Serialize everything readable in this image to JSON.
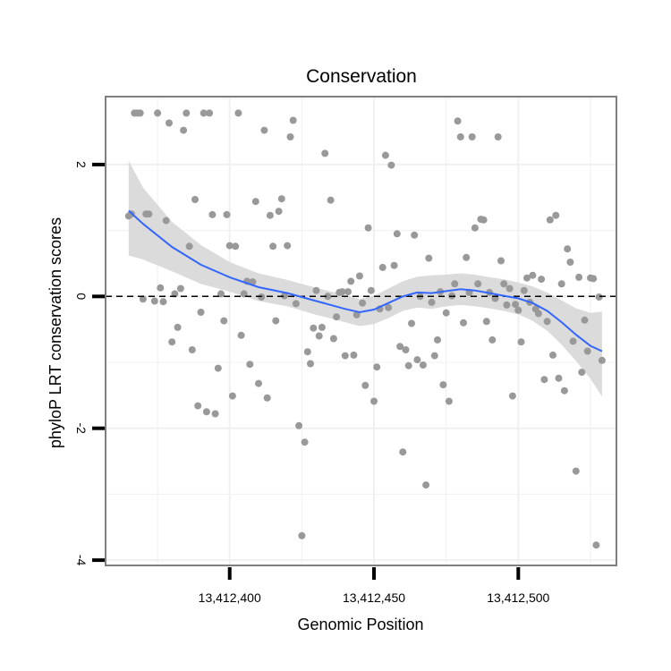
{
  "chart_data": {
    "type": "scatter",
    "title": "Conservation",
    "xlabel": "Genomic Position",
    "ylabel": "phyloP LRT conservation scores",
    "xlim": [
      13412357,
      13412534
    ],
    "ylim": [
      -4.08,
      3.03
    ],
    "x_ticks": [
      13412400,
      13412450,
      13412500
    ],
    "x_tick_labels": [
      "13,412,400",
      "13,412,450",
      "13,412,500"
    ],
    "y_ticks": [
      -4,
      -2,
      0,
      2
    ],
    "y_tick_labels": [
      "-4",
      "-2",
      "0",
      "2"
    ],
    "reference_line": 0,
    "grid": true,
    "colors": {
      "points": "#999999",
      "smooth": "#3366ff",
      "ribbon": "#d9d9d9",
      "panel_border": "#7f7f7f",
      "gridline": "#f0f0f0",
      "reference_line": "#000000"
    },
    "points": [
      [
        13412365,
        1.22
      ],
      [
        13412366,
        1.25
      ],
      [
        13412367,
        2.78
      ],
      [
        13412368,
        2.78
      ],
      [
        13412369,
        2.78
      ],
      [
        13412370,
        -0.04
      ],
      [
        13412371,
        1.25
      ],
      [
        13412372,
        1.25
      ],
      [
        13412374,
        -0.07
      ],
      [
        13412375,
        2.78
      ],
      [
        13412376,
        0.13
      ],
      [
        13412377,
        -0.08
      ],
      [
        13412378,
        1.15
      ],
      [
        13412379,
        2.63
      ],
      [
        13412380,
        -0.69
      ],
      [
        13412381,
        0.04
      ],
      [
        13412382,
        -0.47
      ],
      [
        13412383,
        0.12
      ],
      [
        13412384,
        2.52
      ],
      [
        13412385,
        2.78
      ],
      [
        13412386,
        0.76
      ],
      [
        13412387,
        -0.81
      ],
      [
        13412388,
        1.47
      ],
      [
        13412389,
        -1.66
      ],
      [
        13412390,
        -0.24
      ],
      [
        13412391,
        2.78
      ],
      [
        13412392,
        -1.75
      ],
      [
        13412393,
        2.78
      ],
      [
        13412394,
        1.24
      ],
      [
        13412395,
        -1.78
      ],
      [
        13412396,
        -1.09
      ],
      [
        13412397,
        0.04
      ],
      [
        13412398,
        -0.37
      ],
      [
        13412399,
        1.24
      ],
      [
        13412400,
        0.77
      ],
      [
        13412401,
        -1.51
      ],
      [
        13412402,
        0.76
      ],
      [
        13412403,
        2.78
      ],
      [
        13412404,
        -0.59
      ],
      [
        13412405,
        0.04
      ],
      [
        13412406,
        0.23
      ],
      [
        13412407,
        -1.03
      ],
      [
        13412408,
        0.22
      ],
      [
        13412409,
        1.44
      ],
      [
        13412410,
        -1.32
      ],
      [
        13412411,
        -0.01
      ],
      [
        13412412,
        2.52
      ],
      [
        13412413,
        -1.54
      ],
      [
        13412414,
        1.23
      ],
      [
        13412415,
        0.76
      ],
      [
        13412416,
        -0.37
      ],
      [
        13412417,
        1.29
      ],
      [
        13412418,
        1.48
      ],
      [
        13412419,
        0.01
      ],
      [
        13412420,
        0.77
      ],
      [
        13412421,
        2.42
      ],
      [
        13412422,
        2.67
      ],
      [
        13412423,
        -0.11
      ],
      [
        13412424,
        -1.96
      ],
      [
        13412425,
        -3.63
      ],
      [
        13412426,
        -2.21
      ],
      [
        13412427,
        -0.84
      ],
      [
        13412428,
        -1.02
      ],
      [
        13412429,
        -0.48
      ],
      [
        13412430,
        0.09
      ],
      [
        13412431,
        -0.6
      ],
      [
        13412432,
        -0.47
      ],
      [
        13412433,
        2.17
      ],
      [
        13412434,
        0.0
      ],
      [
        13412435,
        1.46
      ],
      [
        13412436,
        -0.64
      ],
      [
        13412437,
        -0.31
      ],
      [
        13412438,
        0.06
      ],
      [
        13412439,
        0.07
      ],
      [
        13412440,
        -0.9
      ],
      [
        13412441,
        0.07
      ],
      [
        13412442,
        0.23
      ],
      [
        13412443,
        -0.89
      ],
      [
        13412444,
        -0.28
      ],
      [
        13412445,
        0.31
      ],
      [
        13412446,
        -0.1
      ],
      [
        13412447,
        -1.35
      ],
      [
        13412448,
        1.04
      ],
      [
        13412449,
        0.09
      ],
      [
        13412450,
        -1.59
      ],
      [
        13412451,
        -1.07
      ],
      [
        13412452,
        -0.19
      ],
      [
        13412453,
        0.44
      ],
      [
        13412454,
        2.14
      ],
      [
        13412455,
        -0.17
      ],
      [
        13412456,
        1.99
      ],
      [
        13412457,
        0.47
      ],
      [
        13412458,
        0.95
      ],
      [
        13412459,
        -0.76
      ],
      [
        13412460,
        -2.36
      ],
      [
        13412461,
        -0.81
      ],
      [
        13412462,
        -1.05
      ],
      [
        13412463,
        -0.41
      ],
      [
        13412464,
        0.93
      ],
      [
        13412465,
        -0.96
      ],
      [
        13412466,
        0.0
      ],
      [
        13412467,
        -1.04
      ],
      [
        13412468,
        -2.86
      ],
      [
        13412469,
        0.58
      ],
      [
        13412470,
        -0.09
      ],
      [
        13412471,
        -0.9
      ],
      [
        13412472,
        -0.66
      ],
      [
        13412473,
        0.07
      ],
      [
        13412474,
        -1.34
      ],
      [
        13412475,
        -0.25
      ],
      [
        13412476,
        -1.59
      ],
      [
        13412477,
        0.01
      ],
      [
        13412478,
        0.19
      ],
      [
        13412479,
        2.66
      ],
      [
        13412480,
        2.42
      ],
      [
        13412481,
        -0.4
      ],
      [
        13412482,
        0.59
      ],
      [
        13412483,
        0.06
      ],
      [
        13412484,
        2.42
      ],
      [
        13412485,
        1.04
      ],
      [
        13412486,
        0.19
      ],
      [
        13412487,
        1.17
      ],
      [
        13412488,
        1.16
      ],
      [
        13412489,
        -0.38
      ],
      [
        13412490,
        0.06
      ],
      [
        13412491,
        -0.66
      ],
      [
        13412492,
        -0.03
      ],
      [
        13412493,
        2.42
      ],
      [
        13412494,
        0.54
      ],
      [
        13412495,
        0.19
      ],
      [
        13412496,
        -0.13
      ],
      [
        13412497,
        0.12
      ],
      [
        13412498,
        -1.51
      ],
      [
        13412499,
        -0.12
      ],
      [
        13412500,
        -0.21
      ],
      [
        13412501,
        -0.69
      ],
      [
        13412502,
        0.09
      ],
      [
        13412503,
        0.28
      ],
      [
        13412504,
        -0.09
      ],
      [
        13412505,
        0.32
      ],
      [
        13412506,
        -0.19
      ],
      [
        13412507,
        -0.26
      ],
      [
        13412508,
        0.26
      ],
      [
        13412509,
        -1.26
      ],
      [
        13412510,
        -0.38
      ],
      [
        13412511,
        1.16
      ],
      [
        13412512,
        -0.89
      ],
      [
        13412513,
        1.23
      ],
      [
        13412514,
        -1.24
      ],
      [
        13412515,
        0.19
      ],
      [
        13412516,
        -1.43
      ],
      [
        13412517,
        0.72
      ],
      [
        13412518,
        0.52
      ],
      [
        13412519,
        -0.68
      ],
      [
        13412520,
        -2.65
      ],
      [
        13412521,
        0.29
      ],
      [
        13412522,
        -1.15
      ],
      [
        13412523,
        -0.36
      ],
      [
        13412524,
        -0.83
      ],
      [
        13412525,
        0.28
      ],
      [
        13412526,
        0.27
      ],
      [
        13412527,
        -3.77
      ],
      [
        13412528,
        -0.01
      ],
      [
        13412529,
        -0.97
      ]
    ],
    "smooth": [
      [
        13412365,
        1.3
      ],
      [
        13412370,
        1.1
      ],
      [
        13412380,
        0.75
      ],
      [
        13412390,
        0.48
      ],
      [
        13412400,
        0.29
      ],
      [
        13412410,
        0.14
      ],
      [
        13412420,
        0.05
      ],
      [
        13412430,
        -0.07
      ],
      [
        13412440,
        -0.19
      ],
      [
        13412445,
        -0.24
      ],
      [
        13412450,
        -0.2
      ],
      [
        13412455,
        -0.1
      ],
      [
        13412460,
        0.0
      ],
      [
        13412465,
        0.06
      ],
      [
        13412470,
        0.05
      ],
      [
        13412475,
        0.08
      ],
      [
        13412480,
        0.11
      ],
      [
        13412485,
        0.09
      ],
      [
        13412490,
        0.05
      ],
      [
        13412495,
        0.01
      ],
      [
        13412500,
        -0.03
      ],
      [
        13412505,
        -0.1
      ],
      [
        13412510,
        -0.22
      ],
      [
        13412515,
        -0.39
      ],
      [
        13412520,
        -0.58
      ],
      [
        13412525,
        -0.75
      ],
      [
        13412529,
        -0.83
      ]
    ],
    "ribbon_upper": [
      [
        13412365,
        2.06
      ],
      [
        13412370,
        1.65
      ],
      [
        13412380,
        1.13
      ],
      [
        13412390,
        0.78
      ],
      [
        13412400,
        0.52
      ],
      [
        13412410,
        0.35
      ],
      [
        13412420,
        0.25
      ],
      [
        13412430,
        0.13
      ],
      [
        13412440,
        0.02
      ],
      [
        13412445,
        -0.04
      ],
      [
        13412450,
        0.01
      ],
      [
        13412455,
        0.12
      ],
      [
        13412460,
        0.23
      ],
      [
        13412465,
        0.3
      ],
      [
        13412470,
        0.32
      ],
      [
        13412475,
        0.33
      ],
      [
        13412480,
        0.35
      ],
      [
        13412485,
        0.33
      ],
      [
        13412490,
        0.29
      ],
      [
        13412495,
        0.26
      ],
      [
        13412500,
        0.21
      ],
      [
        13412505,
        0.15
      ],
      [
        13412510,
        0.06
      ],
      [
        13412515,
        -0.06
      ],
      [
        13412520,
        -0.18
      ],
      [
        13412525,
        -0.25
      ],
      [
        13412529,
        -0.23
      ]
    ],
    "ribbon_lower": [
      [
        13412365,
        0.62
      ],
      [
        13412370,
        0.56
      ],
      [
        13412380,
        0.38
      ],
      [
        13412390,
        0.19
      ],
      [
        13412400,
        0.07
      ],
      [
        13412410,
        -0.07
      ],
      [
        13412420,
        -0.15
      ],
      [
        13412430,
        -0.28
      ],
      [
        13412440,
        -0.39
      ],
      [
        13412445,
        -0.45
      ],
      [
        13412450,
        -0.42
      ],
      [
        13412455,
        -0.33
      ],
      [
        13412460,
        -0.22
      ],
      [
        13412465,
        -0.17
      ],
      [
        13412470,
        -0.19
      ],
      [
        13412475,
        -0.15
      ],
      [
        13412480,
        -0.13
      ],
      [
        13412485,
        -0.15
      ],
      [
        13412490,
        -0.18
      ],
      [
        13412495,
        -0.22
      ],
      [
        13412500,
        -0.27
      ],
      [
        13412505,
        -0.37
      ],
      [
        13412510,
        -0.52
      ],
      [
        13412515,
        -0.73
      ],
      [
        13412520,
        -0.98
      ],
      [
        13412525,
        -1.25
      ],
      [
        13412529,
        -1.52
      ]
    ]
  }
}
